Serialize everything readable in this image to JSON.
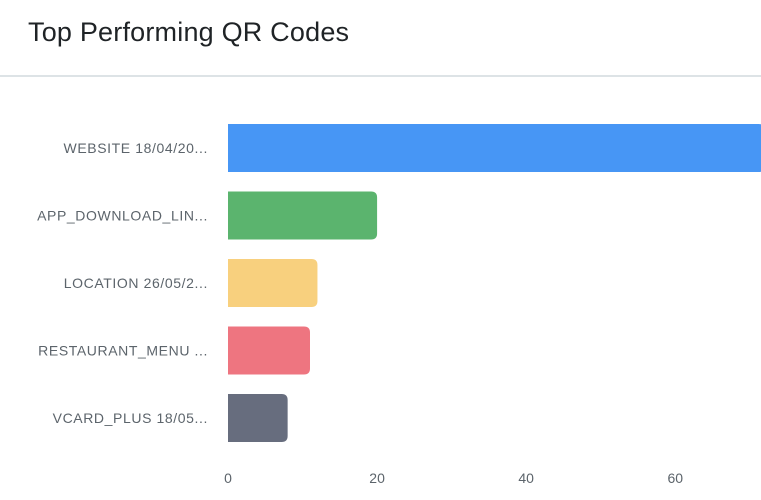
{
  "card": {
    "title": "Top Performing QR Codes"
  },
  "chart_data": {
    "type": "bar",
    "orientation": "horizontal",
    "categories": [
      "WEBSITE 18/04/20...",
      "APP_DOWNLOAD_LIN...",
      "LOCATION 26/05/2...",
      "RESTAURANT_MENU ...",
      "VCARD_PLUS 18/05..."
    ],
    "values": [
      72,
      20,
      12,
      11,
      8
    ],
    "colors": [
      "#4796f5",
      "#5bb46e",
      "#f8d07e",
      "#ee7580",
      "#676d7e"
    ],
    "x_ticks": [
      0,
      20,
      40,
      60
    ],
    "xlim": [
      0,
      71.5
    ],
    "grid": false,
    "legend": "none"
  }
}
